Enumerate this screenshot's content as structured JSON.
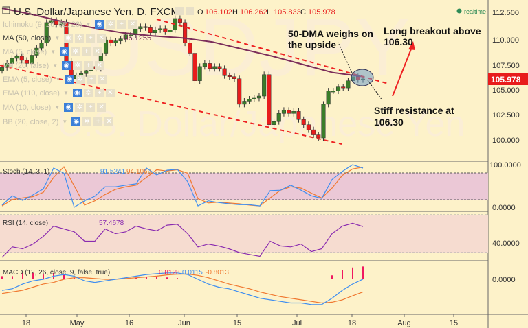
{
  "header": {
    "symbol": "U.S. Dollar/Japanese Yen, D, FXCM",
    "o_label": "O",
    "o": "106.102",
    "h_label": "H",
    "h": "106.262",
    "l_label": "L",
    "l": "105.833",
    "c_label": "C",
    "c": "105.978",
    "realtime": "realtime"
  },
  "watermark": {
    "ticker": "USDJPY",
    "name": "U.S. Dollar/Japanese Yen"
  },
  "legend": [
    {
      "label": "Ichimoku (9, 26, 52, 26)",
      "value": ""
    },
    {
      "label": "MA (50, close)",
      "value": "106.1255"
    },
    {
      "label": "MA (5, close)",
      "value": ""
    },
    {
      "label": "Vol (20, false)",
      "value": ""
    },
    {
      "label": "EMA (5, close)",
      "value": ""
    },
    {
      "label": "EMA (110, close)",
      "value": ""
    },
    {
      "label": "MA (10, close)",
      "value": ""
    },
    {
      "label": "BB (20, close, 2)",
      "value": ""
    }
  ],
  "annotations": {
    "dma": "50-DMA weighs on",
    "dma2": "the upside",
    "breakout": "Long breakout above",
    "breakout2": "106.30",
    "resistance": "Stiff resistance at",
    "resistance2": "106.30"
  },
  "colors": {
    "up": "#3a7d2a",
    "down": "#e81c1c",
    "ma50": "#7b2d5a",
    "trend": "#ee2222",
    "stoch_k": "#3f8ef0",
    "stoch_d": "#f07830",
    "rsi": "#8a2bb0",
    "macd": "#3f8ef0",
    "signal": "#f07830",
    "hist": "#f01860"
  },
  "chart_data": [
    {
      "type": "candlestick",
      "title": "U.S. Dollar/Japanese Yen, D, FXCM",
      "x_ticks": [
        "18",
        "May",
        "16",
        "Jun",
        "15",
        "Jul",
        "18",
        "Aug",
        "15"
      ],
      "y_ticks": [
        "112.500",
        "110.000",
        "107.500",
        "105.000",
        "102.500",
        "100.000"
      ],
      "ylim": [
        99,
        113.5
      ],
      "last_price": "105.978",
      "first_open": 106.8,
      "closes": [
        107.1,
        107.5,
        108,
        108.2,
        107.8,
        107.5,
        108.3,
        109,
        109.5,
        111.5,
        111.7,
        111.3,
        111.5,
        107.7,
        106,
        106.3,
        106.5,
        106.8,
        107.2,
        107,
        108.5,
        109.8,
        109.5,
        109.7,
        109.9,
        110.3,
        110.3,
        110.9,
        111.1,
        111,
        110.5,
        110.8,
        110.9,
        110.6,
        110.8,
        111.9,
        111.5,
        109.5,
        108.5,
        105.8,
        107.2,
        107.5,
        107,
        107.2,
        107,
        106.3,
        106.2,
        106,
        103.5,
        103.8,
        104,
        104.1,
        104.3,
        106.4,
        101.5,
        101.8,
        102.6,
        102.9,
        102.6,
        102.8,
        102,
        101.5,
        101,
        100.5,
        100.2,
        103.5,
        104.8,
        104.8,
        105.2,
        105.1,
        105.8,
        106.2,
        105.9,
        105.978
      ],
      "ma50": [
        112.9,
        112.3,
        111.6,
        111.0,
        110.5,
        110.2,
        110.0,
        109.6,
        108.9,
        108.2,
        107.4,
        106.6,
        106.2
      ]
    },
    {
      "type": "line",
      "name": "Stoch (14, 3, 1)",
      "values_label": [
        "91.5241",
        "94.1069"
      ],
      "y_ticks": [
        "100.0000",
        "0.0000"
      ],
      "ylim": [
        0,
        100
      ],
      "bands": [
        20,
        80
      ],
      "series": [
        {
          "values": [
            5,
            27,
            16,
            29,
            43,
            92,
            80,
            0,
            15,
            26,
            48,
            48,
            52,
            55,
            92,
            76,
            87,
            89,
            60,
            3,
            15,
            11,
            8,
            6,
            6,
            3,
            39,
            40,
            52,
            40,
            27,
            21,
            65,
            84,
            100,
            92
          ]
        },
        {
          "values": [
            3,
            18,
            22,
            25,
            35,
            70,
            95,
            50,
            5,
            15,
            30,
            42,
            48,
            52,
            70,
            88,
            85,
            88,
            80,
            20,
            10,
            12,
            10,
            8,
            5,
            3,
            22,
            40,
            48,
            45,
            33,
            22,
            45,
            75,
            90,
            94
          ]
        }
      ]
    },
    {
      "type": "line",
      "name": "RSI (14, close)",
      "value_label": "57.4678",
      "y_ticks": [
        "40.0000"
      ],
      "ylim": [
        20,
        75
      ],
      "bands": [
        30,
        70
      ],
      "series": [
        {
          "values": [
            25,
            36,
            34,
            39,
            47,
            58,
            55,
            52,
            42,
            42,
            55,
            50,
            52,
            58,
            55,
            53,
            59,
            60,
            50,
            36,
            39,
            37,
            34,
            30,
            28,
            26,
            42,
            37,
            36,
            39,
            31,
            34,
            50,
            58,
            61,
            57.5
          ]
        }
      ]
    },
    {
      "type": "line",
      "name": "MACD (12, 26, close, 9, false, true)",
      "values_label": [
        "0.8128",
        "0.0115",
        "-0.8013"
      ],
      "y_ticks": [
        "0.0000"
      ],
      "ylim": [
        -2,
        1
      ],
      "series": [
        {
          "values": [
            -0.7,
            -0.6,
            -0.3,
            -0.1,
            0.0,
            0.2,
            0.3,
            0.2,
            -0.1,
            -0.2,
            -0.1,
            0.0,
            0.1,
            0.2,
            0.3,
            0.35,
            0.4,
            0.4,
            0.3,
            0.0,
            -0.3,
            -0.5,
            -0.6,
            -0.8,
            -1.0,
            -1.2,
            -1.3,
            -1.4,
            -1.5,
            -1.5,
            -1.6,
            -1.6,
            -1.2,
            -0.7,
            -0.3,
            0.01
          ]
        },
        {
          "values": [
            -0.9,
            -0.8,
            -0.7,
            -0.5,
            -0.3,
            -0.2,
            0.0,
            0.1,
            0.1,
            0.05,
            0.0,
            0.0,
            0.05,
            0.1,
            0.15,
            0.2,
            0.28,
            0.32,
            0.33,
            0.25,
            0.1,
            -0.1,
            -0.3,
            -0.45,
            -0.6,
            -0.8,
            -0.95,
            -1.1,
            -1.2,
            -1.3,
            -1.4,
            -1.5,
            -1.45,
            -1.3,
            -1.05,
            -0.8
          ]
        }
      ]
    }
  ]
}
